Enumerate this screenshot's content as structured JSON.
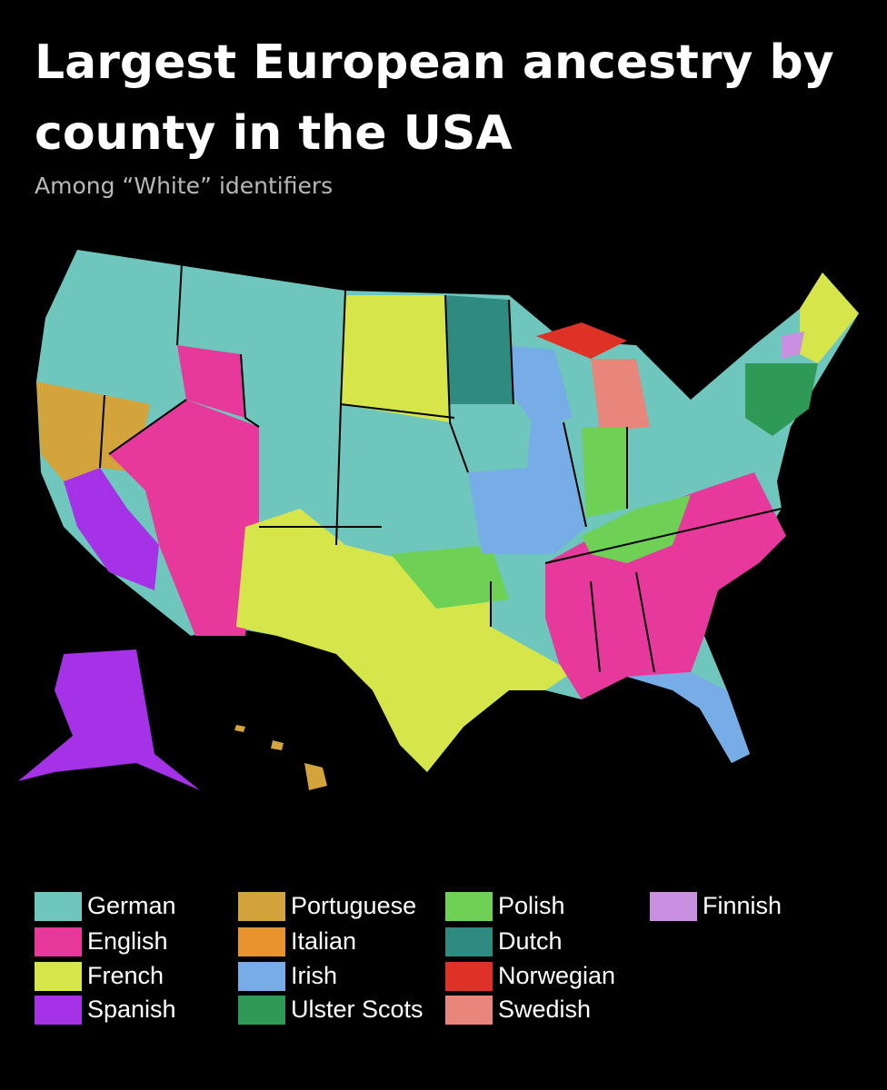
{
  "title": "Largest European ancestry by county in the USA",
  "subtitle": "Among “White” identifiers",
  "legend": [
    {
      "name": "German",
      "color": "#6fc6bd"
    },
    {
      "name": "English",
      "color": "#e6399b"
    },
    {
      "name": "French",
      "color": "#d6e64a"
    },
    {
      "name": "Spanish",
      "color": "#a532e6"
    },
    {
      "name": "Portuguese",
      "color": "#d4a43c"
    },
    {
      "name": "Italian",
      "color": "#e8942e"
    },
    {
      "name": "Irish",
      "color": "#76ade6"
    },
    {
      "name": "Ulster Scots",
      "color": "#2f9a55"
    },
    {
      "name": "Polish",
      "color": "#6fd056"
    },
    {
      "name": "Dutch",
      "color": "#2f8a80"
    },
    {
      "name": "Norwegian",
      "color": "#df3226"
    },
    {
      "name": "Swedish",
      "color": "#e8867b"
    },
    {
      "name": "Finnish",
      "color": "#c98fe0"
    }
  ]
}
